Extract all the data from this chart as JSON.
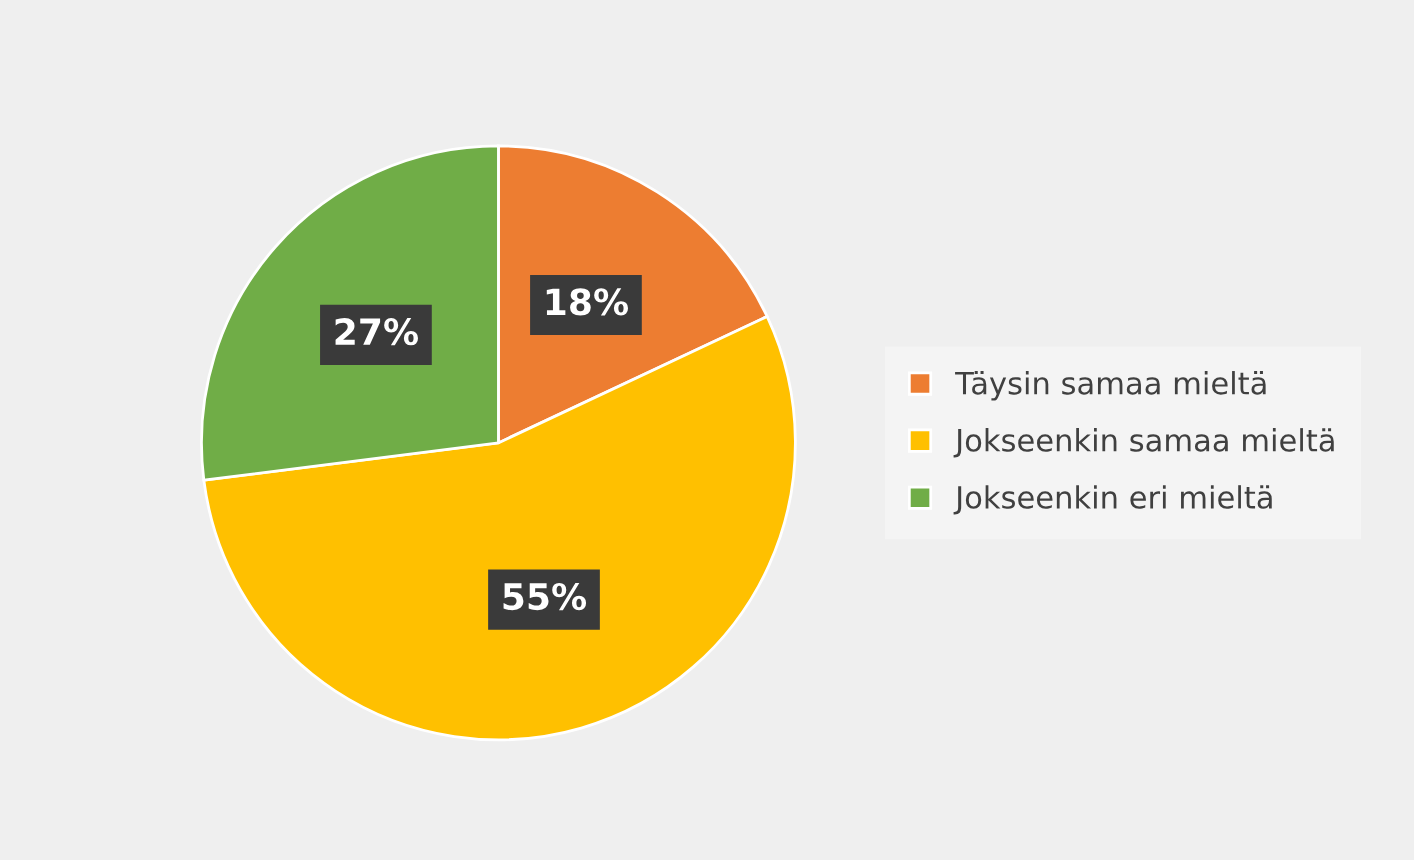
{
  "chart_data": {
    "type": "pie",
    "categories": [
      "Täysin samaa mieltä",
      "Jokseenkin samaa mieltä",
      "Jokseenkin eri mieltä"
    ],
    "values": [
      18,
      55,
      27
    ],
    "colors": [
      "#ed7d31",
      "#ffc000",
      "#70ad47"
    ],
    "value_labels": [
      "18%",
      "55%",
      "27%"
    ],
    "legend": "right"
  }
}
